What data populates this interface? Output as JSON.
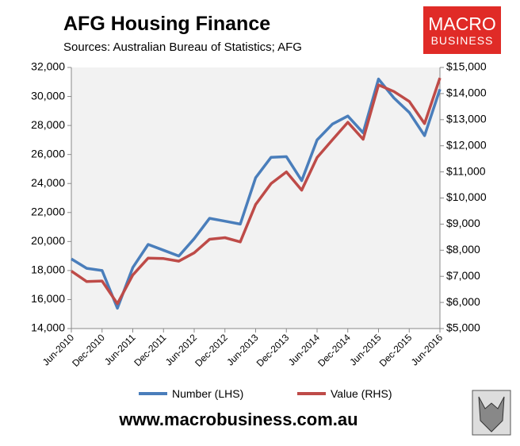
{
  "chart_data": {
    "type": "line",
    "title": "AFG Housing Finance",
    "subtitle": "Sources: Australian Bureau of Statistics; AFG",
    "logo": {
      "line1": "MACRO",
      "line2": "BUSINESS"
    },
    "footer": "www.macrobusiness.com.au",
    "categories": [
      "Jun-2010",
      null,
      "Dec-2010",
      null,
      "Jun-2011",
      null,
      "Dec-2011",
      null,
      "Jun-2012",
      null,
      "Dec-2012",
      null,
      "Jun-2013",
      null,
      "Dec-2013",
      null,
      "Jun-2014",
      null,
      "Dec-2014",
      null,
      "Jun-2015",
      null,
      "Dec-2015",
      null,
      "Jun-2016"
    ],
    "series": [
      {
        "name": "Number (LHS)",
        "color": "#4a7ebb",
        "axis": "y",
        "values": [
          18800,
          18150,
          18000,
          15400,
          18200,
          19800,
          19400,
          19000,
          20200,
          21600,
          21400,
          21200,
          24400,
          25800,
          25850,
          24200,
          27000,
          28100,
          28650,
          27500,
          31200,
          29900,
          28900,
          27300,
          30500
        ]
      },
      {
        "name": "Value (RHS)",
        "color": "#be4b48",
        "axis": "y2",
        "values": [
          7200,
          6800,
          6820,
          5950,
          7050,
          7700,
          7680,
          7580,
          7900,
          8420,
          8480,
          8320,
          9750,
          10550,
          11000,
          10300,
          11550,
          12230,
          12900,
          12250,
          14330,
          14080,
          13700,
          12850,
          14600
        ]
      }
    ],
    "ylim": [
      14000,
      32000
    ],
    "yticks": [
      {
        "value": 14000,
        "label": "14,000"
      },
      {
        "value": 16000,
        "label": "16,000"
      },
      {
        "value": 18000,
        "label": "18,000"
      },
      {
        "value": 20000,
        "label": "20,000"
      },
      {
        "value": 22000,
        "label": "22,000"
      },
      {
        "value": 24000,
        "label": "24,000"
      },
      {
        "value": 26000,
        "label": "26,000"
      },
      {
        "value": 28000,
        "label": "28,000"
      },
      {
        "value": 30000,
        "label": "30,000"
      },
      {
        "value": 32000,
        "label": "32,000"
      }
    ],
    "y2lim": [
      5000,
      15000
    ],
    "y2ticks": [
      {
        "value": 5000,
        "label": "$5,000"
      },
      {
        "value": 6000,
        "label": "$6,000"
      },
      {
        "value": 7000,
        "label": "$7,000"
      },
      {
        "value": 8000,
        "label": "$8,000"
      },
      {
        "value": 9000,
        "label": "$9,000"
      },
      {
        "value": 10000,
        "label": "$10,000"
      },
      {
        "value": 11000,
        "label": "$11,000"
      },
      {
        "value": 12000,
        "label": "$12,000"
      },
      {
        "value": 13000,
        "label": "$13,000"
      },
      {
        "value": 14000,
        "label": "$14,000"
      },
      {
        "value": 15000,
        "label": "$15,000"
      }
    ],
    "legend": "bottom"
  }
}
